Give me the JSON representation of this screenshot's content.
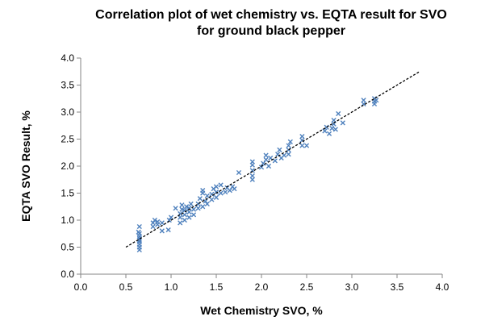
{
  "chart_data": {
    "type": "scatter",
    "title": [
      "Correlation plot  of wet chemistry vs. EQTA result for SVO",
      "for ground black pepper"
    ],
    "xlabel": "Wet Chemistry SVO, %",
    "ylabel": "EQTA SVO Result, %",
    "xlim": [
      0,
      4
    ],
    "ylim": [
      0,
      4
    ],
    "xticks": [
      "0.0",
      "0.5",
      "1.0",
      "1.5",
      "2.0",
      "2.5",
      "3.0",
      "3.5",
      "4.0"
    ],
    "yticks": [
      "0.0",
      "0.5",
      "1.0",
      "1.5",
      "2.0",
      "2.5",
      "3.0",
      "3.5",
      "4.0"
    ],
    "grid": false,
    "marker": "x",
    "color": "#4f81bd",
    "trendline": {
      "x": [
        0.5,
        3.75
      ],
      "y": [
        0.5,
        3.75
      ],
      "style": "dashed",
      "color": "#000000"
    },
    "points": [
      [
        0.65,
        0.45
      ],
      [
        0.65,
        0.5
      ],
      [
        0.65,
        0.55
      ],
      [
        0.65,
        0.6
      ],
      [
        0.65,
        0.63
      ],
      [
        0.65,
        0.66
      ],
      [
        0.65,
        0.7
      ],
      [
        0.65,
        0.75
      ],
      [
        0.64,
        0.78
      ],
      [
        0.65,
        0.88
      ],
      [
        0.8,
        0.88
      ],
      [
        0.8,
        0.95
      ],
      [
        0.82,
        1.0
      ],
      [
        0.85,
        0.92
      ],
      [
        0.85,
        0.97
      ],
      [
        0.9,
        0.8
      ],
      [
        0.9,
        0.95
      ],
      [
        0.97,
        0.82
      ],
      [
        0.98,
        1.0
      ],
      [
        1.0,
        1.05
      ],
      [
        1.05,
        1.22
      ],
      [
        1.1,
        0.95
      ],
      [
        1.1,
        1.05
      ],
      [
        1.1,
        1.12
      ],
      [
        1.12,
        1.2
      ],
      [
        1.12,
        1.28
      ],
      [
        1.15,
        1.0
      ],
      [
        1.15,
        1.1
      ],
      [
        1.15,
        1.18
      ],
      [
        1.17,
        1.25
      ],
      [
        1.2,
        1.05
      ],
      [
        1.2,
        1.15
      ],
      [
        1.2,
        1.22
      ],
      [
        1.22,
        1.3
      ],
      [
        1.25,
        1.1
      ],
      [
        1.25,
        1.2
      ],
      [
        1.3,
        1.22
      ],
      [
        1.3,
        1.3
      ],
      [
        1.32,
        1.4
      ],
      [
        1.35,
        1.25
      ],
      [
        1.35,
        1.5
      ],
      [
        1.35,
        1.55
      ],
      [
        1.38,
        1.35
      ],
      [
        1.4,
        1.45
      ],
      [
        1.4,
        1.3
      ],
      [
        1.45,
        1.38
      ],
      [
        1.45,
        1.48
      ],
      [
        1.47,
        1.58
      ],
      [
        1.5,
        1.42
      ],
      [
        1.5,
        1.52
      ],
      [
        1.5,
        1.62
      ],
      [
        1.55,
        1.5
      ],
      [
        1.55,
        1.65
      ],
      [
        1.6,
        1.52
      ],
      [
        1.62,
        1.6
      ],
      [
        1.65,
        1.55
      ],
      [
        1.68,
        1.62
      ],
      [
        1.7,
        1.58
      ],
      [
        1.75,
        1.88
      ],
      [
        1.9,
        1.75
      ],
      [
        1.9,
        1.82
      ],
      [
        1.9,
        1.92
      ],
      [
        1.9,
        2.02
      ],
      [
        1.9,
        2.08
      ],
      [
        2.0,
        1.98
      ],
      [
        2.02,
        2.05
      ],
      [
        2.05,
        2.12
      ],
      [
        2.05,
        2.2
      ],
      [
        2.08,
        2.0
      ],
      [
        2.1,
        2.15
      ],
      [
        2.15,
        2.1
      ],
      [
        2.18,
        2.22
      ],
      [
        2.2,
        2.3
      ],
      [
        2.22,
        2.15
      ],
      [
        2.25,
        2.2
      ],
      [
        2.3,
        2.22
      ],
      [
        2.3,
        2.3
      ],
      [
        2.3,
        2.38
      ],
      [
        2.32,
        2.45
      ],
      [
        2.45,
        2.38
      ],
      [
        2.45,
        2.48
      ],
      [
        2.45,
        2.55
      ],
      [
        2.5,
        2.38
      ],
      [
        2.7,
        2.65
      ],
      [
        2.72,
        2.72
      ],
      [
        2.75,
        2.6
      ],
      [
        2.78,
        2.7
      ],
      [
        2.8,
        2.78
      ],
      [
        2.8,
        2.85
      ],
      [
        2.82,
        2.68
      ],
      [
        2.85,
        2.97
      ],
      [
        2.9,
        2.8
      ],
      [
        3.13,
        3.15
      ],
      [
        3.13,
        3.22
      ],
      [
        3.25,
        3.15
      ],
      [
        3.25,
        3.2
      ],
      [
        3.25,
        3.25
      ],
      [
        3.27,
        3.22
      ]
    ]
  }
}
